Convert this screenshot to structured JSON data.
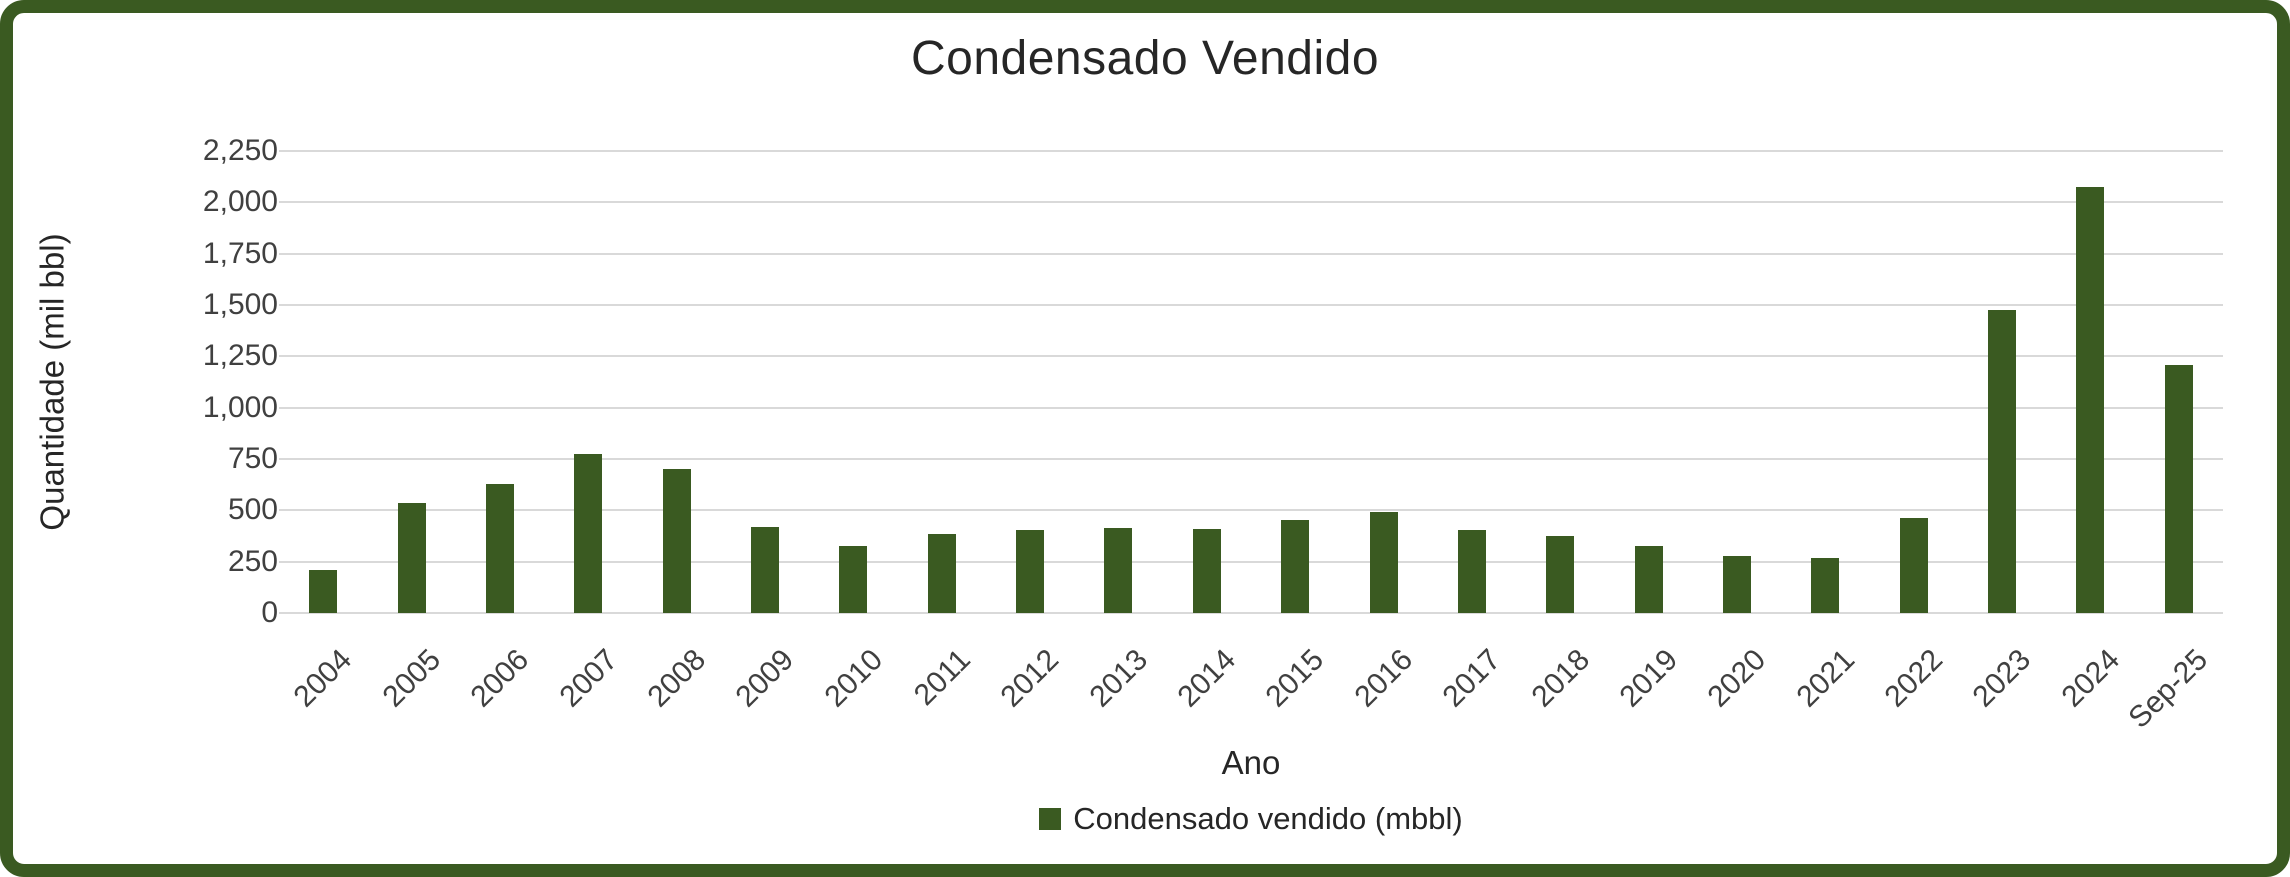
{
  "colors": {
    "bar": "#3A5A21",
    "frame": "#3A5A21",
    "gridline": "#D9D9D9",
    "text": "#262626",
    "tick_text": "#404040"
  },
  "legend": {
    "label": "Condensado vendido (mbbl)"
  },
  "chart_data": {
    "type": "bar",
    "title": "Condensado Vendido",
    "xlabel": "Ano",
    "ylabel": "Quantidade (mil bbl)",
    "series_name": "Condensado vendido (mbbl)",
    "categories": [
      "2004",
      "2005",
      "2006",
      "2007",
      "2008",
      "2009",
      "2010",
      "2011",
      "2012",
      "2013",
      "2014",
      "2015",
      "2016",
      "2017",
      "2018",
      "2019",
      "2020",
      "2021",
      "2022",
      "2023",
      "2024",
      "Sep-25"
    ],
    "values": [
      210,
      535,
      630,
      772,
      703,
      420,
      325,
      385,
      405,
      414,
      410,
      452,
      490,
      405,
      376,
      325,
      280,
      268,
      464,
      1476,
      2075,
      1208
    ],
    "ylim": [
      0,
      2250
    ],
    "ytick_step": 250,
    "ytick_labels": [
      "0",
      "250",
      "500",
      "750",
      "1,000",
      "1,250",
      "1,500",
      "1,750",
      "2,000",
      "2,250"
    ],
    "grid": true,
    "legend_position": "bottom",
    "bar_color": "#3A5A21"
  }
}
